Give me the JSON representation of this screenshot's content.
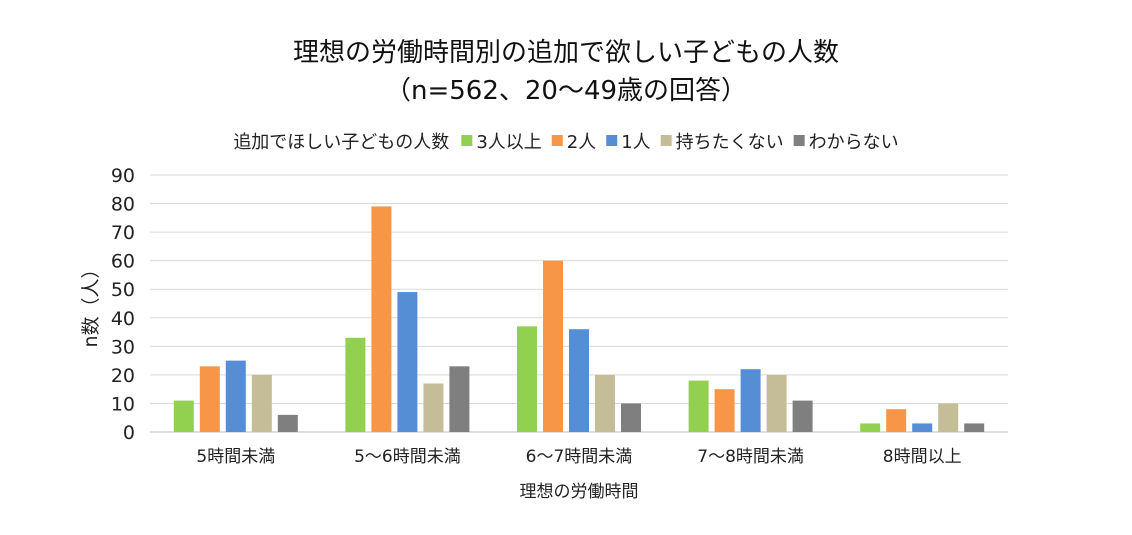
{
  "chart_data": {
    "type": "bar",
    "title": [
      "理想の労働時間別の追加で欲しい子どもの人数",
      "（n=562、20～49歳の回答）"
    ],
    "legend_title": "追加でほしい子どもの人数",
    "legend_position": "top",
    "categories": [
      "5時間未満",
      "5～6時間未満",
      "6～7時間未満",
      "7～8時間未満",
      "8時間以上"
    ],
    "series": [
      {
        "name": "3人以上",
        "color": "#92D050",
        "values": [
          11,
          33,
          37,
          18,
          3
        ]
      },
      {
        "name": "2人",
        "color": "#F79646",
        "values": [
          23,
          79,
          60,
          15,
          8
        ]
      },
      {
        "name": "1人",
        "color": "#558ED5",
        "values": [
          25,
          49,
          36,
          22,
          3
        ]
      },
      {
        "name": "持ちたくない",
        "color": "#C4BD97",
        "values": [
          20,
          17,
          20,
          20,
          10
        ]
      },
      {
        "name": "わからない",
        "color": "#7F7F7F",
        "values": [
          6,
          23,
          10,
          11,
          3
        ]
      }
    ],
    "xlabel": "理想の労働時間",
    "ylabel": "n数（人）",
    "ylim": [
      0,
      90
    ],
    "yticks": [
      0,
      10,
      20,
      30,
      40,
      50,
      60,
      70,
      80,
      90
    ],
    "grid": true
  }
}
